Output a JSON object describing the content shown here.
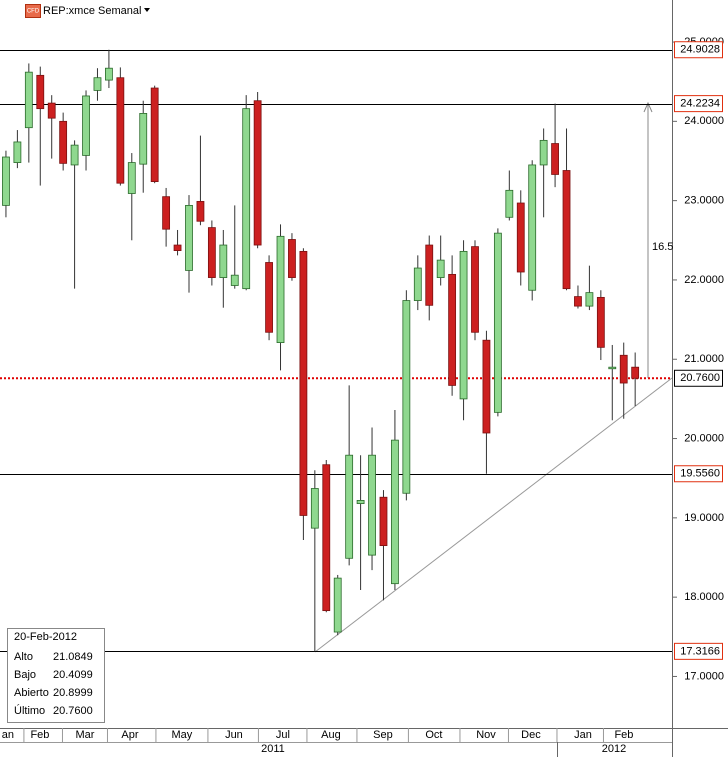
{
  "chart_data": {
    "type": "candlestick",
    "title": "REP:xmce Semanal",
    "badge": "CFD",
    "open": [
      22.94,
      23.48,
      23.92,
      24.58,
      24.23,
      24.0,
      23.45,
      23.57,
      24.39,
      24.52,
      24.55,
      23.09,
      23.46,
      24.42,
      23.05,
      22.44,
      22.12,
      22.99,
      22.66,
      22.03,
      21.93,
      21.89,
      24.26,
      22.22,
      21.21,
      22.51,
      22.36,
      18.87,
      19.67,
      17.56,
      18.49,
      19.18,
      18.53,
      19.26,
      18.17,
      19.31,
      21.74,
      22.44,
      22.03,
      22.07,
      20.5,
      22.42,
      21.24,
      20.33,
      22.79,
      22.97,
      21.87,
      23.45,
      23.72,
      23.38,
      21.79,
      21.67,
      21.78,
      20.88,
      21.05,
      20.8999
    ],
    "high": [
      23.63,
      23.89,
      24.73,
      24.69,
      24.33,
      24.11,
      23.76,
      24.39,
      24.67,
      24.9028,
      24.68,
      23.6,
      24.26,
      24.45,
      23.16,
      22.63,
      23.07,
      23.82,
      22.75,
      22.63,
      22.94,
      24.33,
      24.37,
      22.31,
      22.7,
      22.59,
      22.4,
      19.6,
      19.73,
      18.28,
      20.67,
      19.79,
      20.14,
      19.35,
      20.36,
      21.87,
      22.31,
      22.56,
      22.56,
      22.31,
      22.5,
      22.5,
      21.36,
      22.65,
      23.38,
      23.13,
      23.51,
      23.91,
      24.2234,
      23.91,
      21.93,
      22.18,
      21.87,
      21.18,
      21.21,
      21.0849
    ],
    "low": [
      22.79,
      23.41,
      23.48,
      23.19,
      23.53,
      23.38,
      21.89,
      23.38,
      24.26,
      24.42,
      23.19,
      22.5,
      23.1,
      23.22,
      22.42,
      22.31,
      21.84,
      22.69,
      21.93,
      21.65,
      21.89,
      21.87,
      22.4,
      21.24,
      20.86,
      21.99,
      18.72,
      17.3166,
      17.81,
      17.52,
      18.4,
      18.09,
      18.34,
      17.96,
      18.09,
      19.22,
      21.62,
      21.49,
      21.93,
      20.54,
      20.23,
      21.24,
      19.556,
      20.28,
      22.75,
      21.93,
      21.74,
      22.79,
      23.17,
      21.87,
      21.64,
      21.62,
      20.99,
      20.23,
      20.25,
      20.4099
    ],
    "close": [
      23.55,
      23.74,
      24.62,
      24.16,
      24.04,
      23.47,
      23.7,
      24.32,
      24.55,
      24.67,
      23.22,
      23.48,
      24.1,
      23.24,
      22.64,
      22.37,
      22.94,
      22.74,
      22.03,
      22.44,
      22.06,
      24.16,
      22.44,
      21.34,
      22.55,
      22.03,
      19.03,
      19.37,
      17.83,
      18.24,
      19.79,
      19.22,
      19.79,
      18.65,
      19.98,
      21.74,
      22.15,
      21.68,
      22.25,
      20.67,
      22.36,
      21.34,
      20.07,
      22.59,
      23.13,
      22.1,
      23.45,
      23.76,
      23.33,
      21.89,
      21.67,
      21.84,
      21.15,
      20.9,
      20.7,
      20.76
    ],
    "up_color": "#8fd88f",
    "down_color": "#cc2020",
    "xlim": [
      -0.52,
      58.22
    ],
    "xticks": [
      {
        "value": 0.17,
        "label": "an"
      },
      {
        "value": 2.97,
        "label": "Feb"
      },
      {
        "value": 6.91,
        "label": "Mar"
      },
      {
        "value": 10.84,
        "label": "Apr"
      },
      {
        "value": 15.38,
        "label": "May"
      },
      {
        "value": 19.93,
        "label": "Jun"
      },
      {
        "value": 24.21,
        "label": "Jul"
      },
      {
        "value": 28.41,
        "label": "Aug"
      },
      {
        "value": 32.95,
        "label": "Sep"
      },
      {
        "value": 37.41,
        "label": "Oct"
      },
      {
        "value": 41.96,
        "label": "Nov"
      },
      {
        "value": 45.89,
        "label": "Dec"
      },
      {
        "value": 50.44,
        "label": "Jan"
      },
      {
        "value": 54.02,
        "label": "Feb"
      }
    ],
    "years": [
      {
        "value": 23.34,
        "label": "2011"
      },
      {
        "value": 53.15,
        "label": "2012"
      }
    ],
    "ylim": [
      16.35,
      25.53
    ],
    "yticks": [
      {
        "value": 17,
        "label": "17.0000"
      },
      {
        "value": 18,
        "label": "18.0000"
      },
      {
        "value": 19,
        "label": "19.0000"
      },
      {
        "value": 20,
        "label": "20.0000"
      },
      {
        "value": 21,
        "label": "21.0000"
      },
      {
        "value": 22,
        "label": "22.0000"
      },
      {
        "value": 23,
        "label": "23.0000"
      },
      {
        "value": 24,
        "label": "24.0000"
      },
      {
        "value": 25,
        "label": "25.0000"
      }
    ],
    "levels": [
      {
        "value": 24.9028,
        "label": "24.9028"
      },
      {
        "value": 24.2234,
        "label": "24.2234"
      },
      {
        "value": 19.556,
        "label": "19.5560"
      },
      {
        "value": 17.3166,
        "label": "17.3166"
      }
    ],
    "last": {
      "value": 20.76,
      "label": "20.7600",
      "color": "#e00000"
    },
    "annotation": "16.5",
    "info": {
      "date": "20-Feb-2012",
      "rows": [
        [
          "Alto",
          "21.0849"
        ],
        [
          "Bajo",
          "20.4099"
        ],
        [
          "Abierto",
          "20.8999"
        ],
        [
          "Último",
          "20.7600"
        ]
      ]
    }
  }
}
